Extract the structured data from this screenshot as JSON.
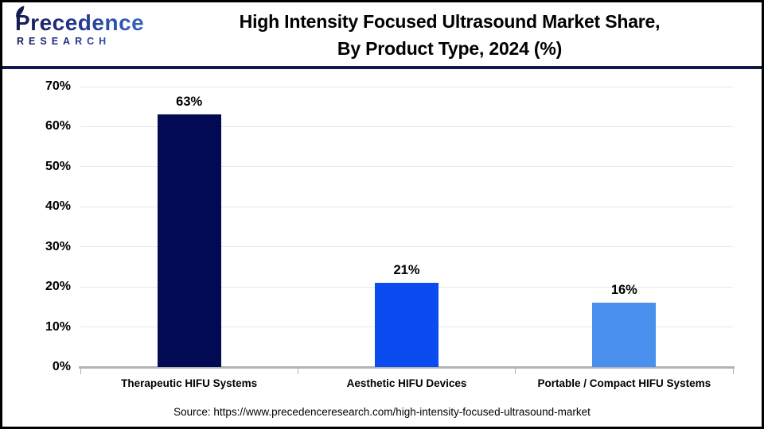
{
  "logo": {
    "name": "Precedence",
    "subname": "RESEARCH"
  },
  "header": {
    "title_line1": "High Intensity Focused Ultrasound Market Share,",
    "title_line2": "By Product Type, 2024 (%)"
  },
  "chart_data": {
    "type": "bar",
    "title": "High Intensity Focused Ultrasound Market Share, By Product Type, 2024 (%)",
    "categories": [
      "Therapeutic HIFU Systems",
      "Aesthetic HIFU Devices",
      "Portable / Compact HIFU Systems"
    ],
    "values": [
      63,
      21,
      16
    ],
    "value_labels": [
      "63%",
      "21%",
      "16%"
    ],
    "bar_colors": [
      "#010a52",
      "#0a4cf0",
      "#4a90ee"
    ],
    "xlabel": "",
    "ylabel": "",
    "ylim": [
      0,
      70
    ],
    "ytick_step": 10,
    "ytick_labels": [
      "0%",
      "10%",
      "20%",
      "30%",
      "40%",
      "50%",
      "60%",
      "70%"
    ],
    "grid": true,
    "legend": "none"
  },
  "footer": {
    "source": "Source: https://www.precedenceresearch.com/high-intensity-focused-ultrasound-market"
  },
  "colors": {
    "divider_navy": "#10194a",
    "gridline": "#e7e7e7",
    "axis_line": "#b3b3b3",
    "bar_navy": "#010a52",
    "bar_blue": "#0a4cf0",
    "bar_light_blue": "#4a90ee"
  }
}
